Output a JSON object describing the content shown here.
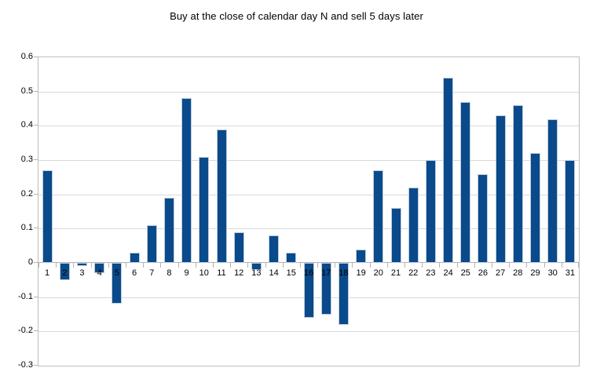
{
  "chart_data": {
    "type": "bar",
    "title": "Buy at the close of calendar day N and sell 5 days later",
    "categories": [
      1,
      2,
      3,
      4,
      5,
      6,
      7,
      8,
      9,
      10,
      11,
      12,
      13,
      14,
      15,
      16,
      17,
      18,
      19,
      20,
      21,
      22,
      23,
      24,
      25,
      26,
      27,
      28,
      29,
      30,
      31
    ],
    "values": [
      0.27,
      -0.05,
      -0.01,
      -0.03,
      -0.12,
      0.03,
      0.11,
      0.19,
      0.48,
      0.31,
      0.39,
      0.09,
      -0.02,
      0.08,
      0.03,
      -0.16,
      -0.15,
      -0.18,
      0.04,
      0.27,
      0.16,
      0.22,
      0.3,
      0.54,
      0.47,
      0.26,
      0.43,
      0.46,
      0.32,
      0.42,
      0.3
    ],
    "xlabel": "",
    "ylabel": "",
    "ylim": [
      -0.3,
      0.6
    ],
    "ytick_step": 0.1,
    "y_tick_labels": [
      "0.6",
      "0.5",
      "0.4",
      "0.3",
      "0.2",
      "0.1",
      "0",
      "-0.1",
      "-0.2",
      "-0.3"
    ],
    "grid": true,
    "legend": "none",
    "colors": {
      "bar_fill": "#0a4a8a",
      "bar_border": "#bcccdf",
      "gridline": "#d9d9d9",
      "axis": "#b3b3b3",
      "text": "#000000",
      "background": "#ffffff"
    }
  }
}
